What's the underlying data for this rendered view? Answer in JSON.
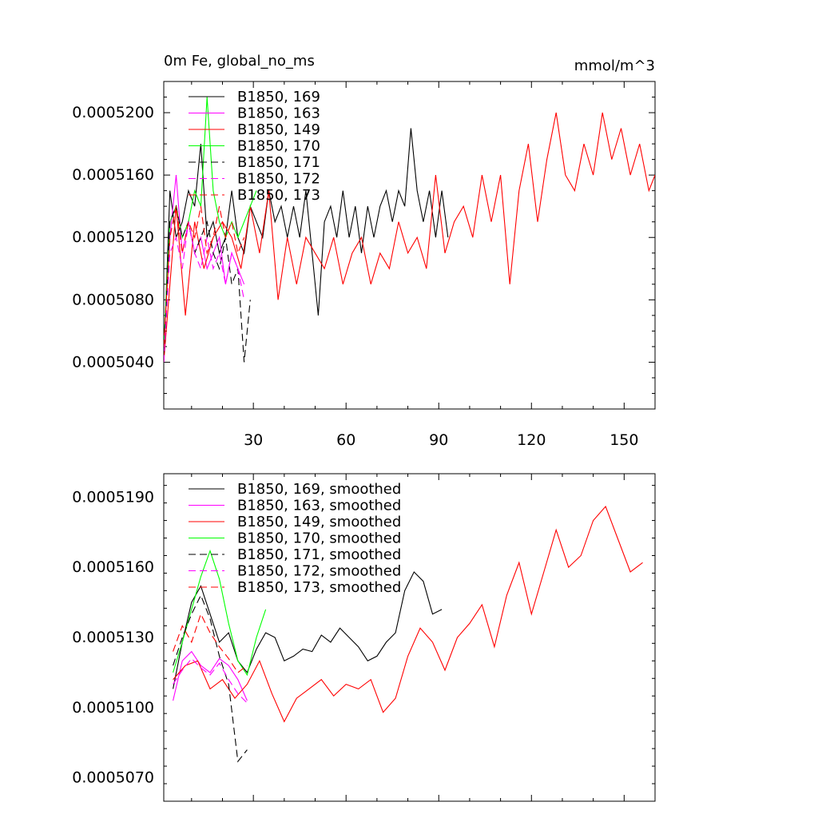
{
  "chart_data": [
    {
      "type": "line",
      "title": "0m Fe, global_no_ms",
      "units": "mmol/m^3",
      "xlabel": "",
      "ylabel": "",
      "xlim": [
        1,
        160
      ],
      "ylim": [
        0.000501,
        0.000522
      ],
      "xticks": [
        30,
        60,
        90,
        120,
        150
      ],
      "xtick_labels": [
        "30",
        "60",
        "90",
        "120",
        "150"
      ],
      "yticks": [
        0.000504,
        0.000508,
        0.000512,
        0.000516,
        0.00052
      ],
      "ytick_labels": [
        "0.0005040",
        "0.0005080",
        "0.0005120",
        "0.0005160",
        "0.0005200"
      ],
      "legend_position": "top-left",
      "series": [
        {
          "name": "B1850, 169",
          "color": "#000000",
          "dash": "solid",
          "x": [
            1,
            3,
            5,
            7,
            9,
            11,
            13,
            15,
            17,
            19,
            21,
            23,
            25,
            27,
            29,
            31,
            33,
            35,
            37,
            39,
            41,
            43,
            45,
            47,
            49,
            51,
            53,
            55,
            57,
            59,
            61,
            63,
            65,
            67,
            69,
            71,
            73,
            75,
            77,
            79,
            81,
            83,
            85,
            87,
            89,
            91,
            93
          ],
          "y": [
            0.000504,
            0.000515,
            0.000512,
            0.000513,
            0.000515,
            0.000514,
            0.000518,
            0.000512,
            0.000513,
            0.000511,
            0.000512,
            0.000515,
            0.000512,
            0.000511,
            0.000514,
            0.000513,
            0.000512,
            0.000515,
            0.000513,
            0.000514,
            0.000512,
            0.000514,
            0.000512,
            0.000515,
            0.000511,
            0.000507,
            0.000513,
            0.000514,
            0.000512,
            0.000515,
            0.000512,
            0.000514,
            0.000511,
            0.000514,
            0.000512,
            0.000514,
            0.000515,
            0.000513,
            0.000515,
            0.000514,
            0.000519,
            0.000515,
            0.000513,
            0.000515,
            0.000512,
            0.000515,
            0.000512
          ]
        },
        {
          "name": "B1850, 163",
          "color": "#ff00ff",
          "dash": "solid",
          "x": [
            1,
            3,
            5,
            7,
            9,
            11,
            13,
            15,
            17,
            19,
            21,
            23,
            25,
            27
          ],
          "y": [
            0.000505,
            0.000512,
            0.000516,
            0.000511,
            0.000513,
            0.000511,
            0.000512,
            0.00051,
            0.000511,
            0.000512,
            0.000509,
            0.000511,
            0.00051,
            0.000509
          ]
        },
        {
          "name": "B1850, 149",
          "color": "#ff0000",
          "dash": "solid",
          "x": [
            1,
            5,
            8,
            11,
            14,
            17,
            20,
            23,
            26,
            29,
            32,
            35,
            38,
            41,
            44,
            47,
            50,
            53,
            56,
            59,
            62,
            65,
            68,
            71,
            74,
            77,
            80,
            83,
            86,
            89,
            92,
            95,
            98,
            101,
            104,
            107,
            110,
            113,
            116,
            119,
            122,
            125,
            128,
            131,
            134,
            137,
            140,
            143,
            146,
            149,
            152,
            155,
            158,
            160
          ],
          "y": [
            0.000504,
            0.000514,
            0.000507,
            0.000513,
            0.00051,
            0.000512,
            0.000513,
            0.000512,
            0.00051,
            0.000514,
            0.000511,
            0.000515,
            0.000508,
            0.000512,
            0.000509,
            0.000512,
            0.000511,
            0.00051,
            0.000512,
            0.000509,
            0.000511,
            0.000512,
            0.000509,
            0.000511,
            0.00051,
            0.000513,
            0.000511,
            0.000512,
            0.00051,
            0.000516,
            0.000511,
            0.000513,
            0.000514,
            0.000512,
            0.000516,
            0.000513,
            0.000516,
            0.000509,
            0.000515,
            0.000518,
            0.000513,
            0.000517,
            0.00052,
            0.000516,
            0.000515,
            0.000518,
            0.000516,
            0.00052,
            0.000517,
            0.000519,
            0.000516,
            0.000518,
            0.000515,
            0.000516
          ]
        },
        {
          "name": "B1850, 170",
          "color": "#00ff00",
          "dash": "solid",
          "x": [
            1,
            3,
            5,
            7,
            9,
            11,
            13,
            15,
            17,
            19,
            21,
            23,
            25,
            27,
            29,
            31
          ],
          "y": [
            0.000505,
            0.000513,
            0.000514,
            0.000512,
            0.000513,
            0.000515,
            0.000514,
            0.000521,
            0.000515,
            0.000513,
            0.000512,
            0.000513,
            0.000512,
            0.000513,
            0.000514,
            0.000515
          ]
        },
        {
          "name": "B1850, 171",
          "color": "#000000",
          "dash": "dashed",
          "x": [
            1,
            3,
            5,
            7,
            9,
            11,
            13,
            15,
            17,
            19,
            21,
            23,
            25,
            27,
            29
          ],
          "y": [
            0.000504,
            0.000513,
            0.000514,
            0.000512,
            0.000513,
            0.000511,
            0.000512,
            0.000513,
            0.000511,
            0.00051,
            0.000512,
            0.000509,
            0.00051,
            0.000504,
            0.000508
          ]
        },
        {
          "name": "B1850, 172",
          "color": "#ff00ff",
          "dash": "dashed",
          "x": [
            1,
            3,
            5,
            7,
            9,
            11,
            13,
            15,
            17,
            19,
            21,
            23,
            25,
            27
          ],
          "y": [
            0.000504,
            0.000511,
            0.000512,
            0.00051,
            0.000513,
            0.000511,
            0.00051,
            0.000512,
            0.00051,
            0.000511,
            0.000509,
            0.000511,
            0.00051,
            0.000508
          ]
        },
        {
          "name": "B1850, 173",
          "color": "#ff0000",
          "dash": "dashed",
          "x": [
            1,
            3,
            5,
            7,
            9,
            11,
            13,
            15,
            17,
            19,
            21,
            23,
            25,
            27
          ],
          "y": [
            0.000505,
            0.000512,
            0.000514,
            0.000511,
            0.000513,
            0.000512,
            0.000514,
            0.000511,
            0.000512,
            0.000514,
            0.000512,
            0.000513,
            0.000511,
            0.000512
          ]
        }
      ]
    },
    {
      "type": "line",
      "title": "",
      "xlabel": "",
      "ylabel": "",
      "xlim": [
        1,
        160
      ],
      "ylim": [
        0.000506,
        0.00052
      ],
      "xticks": [
        30,
        60,
        90,
        120,
        150
      ],
      "yticks": [
        0.000507,
        0.00051,
        0.000513,
        0.000516,
        0.000519
      ],
      "ytick_labels": [
        "0.0005070",
        "0.0005100",
        "0.0005130",
        "0.0005160",
        "0.0005190"
      ],
      "legend_position": "top-left",
      "series": [
        {
          "name": "B1850, 169, smoothed",
          "color": "#000000",
          "dash": "solid",
          "x": [
            4,
            7,
            10,
            13,
            16,
            19,
            22,
            25,
            28,
            31,
            34,
            37,
            40,
            43,
            46,
            49,
            52,
            55,
            58,
            61,
            64,
            67,
            70,
            73,
            76,
            79,
            82,
            85,
            88,
            91
          ],
          "y": [
            0.0005108,
            0.0005128,
            0.0005145,
            0.0005152,
            0.000514,
            0.0005128,
            0.0005132,
            0.000512,
            0.0005115,
            0.0005125,
            0.0005132,
            0.000513,
            0.000512,
            0.0005122,
            0.0005125,
            0.0005124,
            0.0005131,
            0.0005128,
            0.0005134,
            0.000513,
            0.0005126,
            0.000512,
            0.0005122,
            0.0005128,
            0.0005132,
            0.000515,
            0.0005158,
            0.0005154,
            0.000514,
            0.0005142
          ]
        },
        {
          "name": "B1850, 163, smoothed",
          "color": "#ff00ff",
          "dash": "solid",
          "x": [
            4,
            7,
            10,
            13,
            16,
            19,
            22,
            25,
            28
          ],
          "y": [
            0.0005103,
            0.000512,
            0.0005124,
            0.0005118,
            0.0005115,
            0.0005121,
            0.0005118,
            0.0005112,
            0.0005103
          ]
        },
        {
          "name": "B1850, 149, smoothed",
          "color": "#ff0000",
          "dash": "solid",
          "x": [
            4,
            8,
            12,
            16,
            20,
            24,
            28,
            32,
            36,
            40,
            44,
            48,
            52,
            56,
            60,
            64,
            68,
            72,
            76,
            80,
            84,
            88,
            92,
            96,
            100,
            104,
            108,
            112,
            116,
            120,
            124,
            128,
            132,
            136,
            140,
            144,
            148,
            152,
            156
          ],
          "y": [
            0.0005112,
            0.0005118,
            0.000512,
            0.0005108,
            0.0005112,
            0.0005104,
            0.000511,
            0.000512,
            0.0005106,
            0.0005094,
            0.0005104,
            0.0005108,
            0.0005112,
            0.0005105,
            0.000511,
            0.0005108,
            0.0005112,
            0.0005098,
            0.0005104,
            0.0005122,
            0.0005134,
            0.0005128,
            0.0005116,
            0.000513,
            0.0005136,
            0.0005144,
            0.0005126,
            0.0005148,
            0.0005162,
            0.000514,
            0.0005158,
            0.0005176,
            0.000516,
            0.0005165,
            0.000518,
            0.0005186,
            0.0005172,
            0.0005158,
            0.0005162
          ]
        },
        {
          "name": "B1850, 170, smoothed",
          "color": "#00ff00",
          "dash": "solid",
          "x": [
            4,
            7,
            10,
            13,
            16,
            19,
            22,
            25,
            28,
            31,
            34
          ],
          "y": [
            0.0005115,
            0.0005128,
            0.0005142,
            0.0005156,
            0.0005167,
            0.0005155,
            0.0005136,
            0.000512,
            0.0005114,
            0.000513,
            0.0005142
          ]
        },
        {
          "name": "B1850, 171, smoothed",
          "color": "#000000",
          "dash": "dashed",
          "x": [
            4,
            7,
            10,
            13,
            16,
            19,
            22,
            25,
            28
          ],
          "y": [
            0.0005118,
            0.000513,
            0.000514,
            0.0005148,
            0.0005138,
            0.0005122,
            0.000511,
            0.0005077,
            0.0005082
          ]
        },
        {
          "name": "B1850, 172, smoothed",
          "color": "#ff00ff",
          "dash": "dashed",
          "x": [
            4,
            7,
            10,
            13,
            16,
            19,
            22,
            25,
            28
          ],
          "y": [
            0.000511,
            0.0005116,
            0.0005121,
            0.0005117,
            0.0005114,
            0.0005119,
            0.0005112,
            0.0005106,
            0.0005102
          ]
        },
        {
          "name": "B1850, 173, smoothed",
          "color": "#ff0000",
          "dash": "dashed",
          "x": [
            4,
            7,
            10,
            13,
            16,
            19,
            22,
            25,
            28
          ],
          "y": [
            0.0005124,
            0.0005135,
            0.0005128,
            0.000514,
            0.0005132,
            0.0005126,
            0.0005121,
            0.0005115,
            0.0005118
          ]
        }
      ]
    }
  ]
}
